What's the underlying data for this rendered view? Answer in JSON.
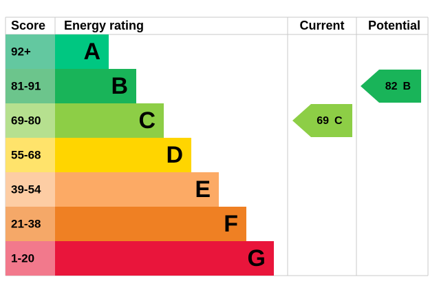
{
  "header": {
    "score": "Score",
    "rating": "Energy rating",
    "current": "Current",
    "potential": "Potential"
  },
  "bands": [
    {
      "score": "92+",
      "rating": "A",
      "color": "#00c781",
      "score_color": "#63c8a0"
    },
    {
      "score": "81-91",
      "rating": "B",
      "color": "#19b459",
      "score_color": "#6cc58c"
    },
    {
      "score": "69-80",
      "rating": "C",
      "color": "#8dce46",
      "score_color": "#b6e08f"
    },
    {
      "score": "55-68",
      "rating": "D",
      "color": "#ffd500",
      "score_color": "#ffe36b"
    },
    {
      "score": "39-54",
      "rating": "E",
      "color": "#fcaa65",
      "score_color": "#fdcda4"
    },
    {
      "score": "21-38",
      "rating": "F",
      "color": "#ef8023",
      "score_color": "#f5a868"
    },
    {
      "score": "1-20",
      "rating": "G",
      "color": "#e9153b",
      "score_color": "#f2798c"
    }
  ],
  "current": {
    "score": 69,
    "rating": "C"
  },
  "potential": {
    "score": 82,
    "rating": "B"
  }
}
